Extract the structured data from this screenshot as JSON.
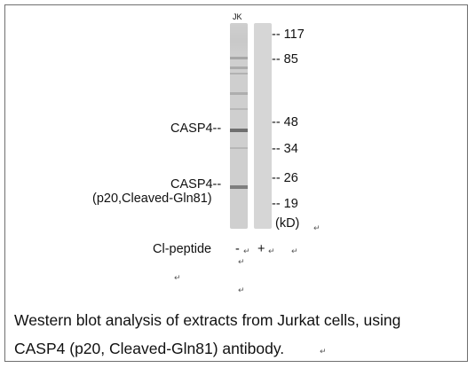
{
  "lane_label": "JK",
  "band_labels": {
    "band1": "CASP4--",
    "band2": "CASP4--",
    "band2_sub": "(p20,Cleaved-Gln81)"
  },
  "mw_markers": [
    "-- 117",
    "-- 85",
    "-- 48",
    "-- 34",
    "-- 26",
    "-- 19"
  ],
  "mw_unit": "(kD)",
  "peptide": {
    "label": "Cl-peptide",
    "lane1": "-",
    "lane2": "+"
  },
  "caption": {
    "line1": "Western blot analysis of extracts from Jurkat cells, using",
    "line2": "CASP4 (p20, Cleaved-Gln81) antibody."
  },
  "return_mark": "↵"
}
